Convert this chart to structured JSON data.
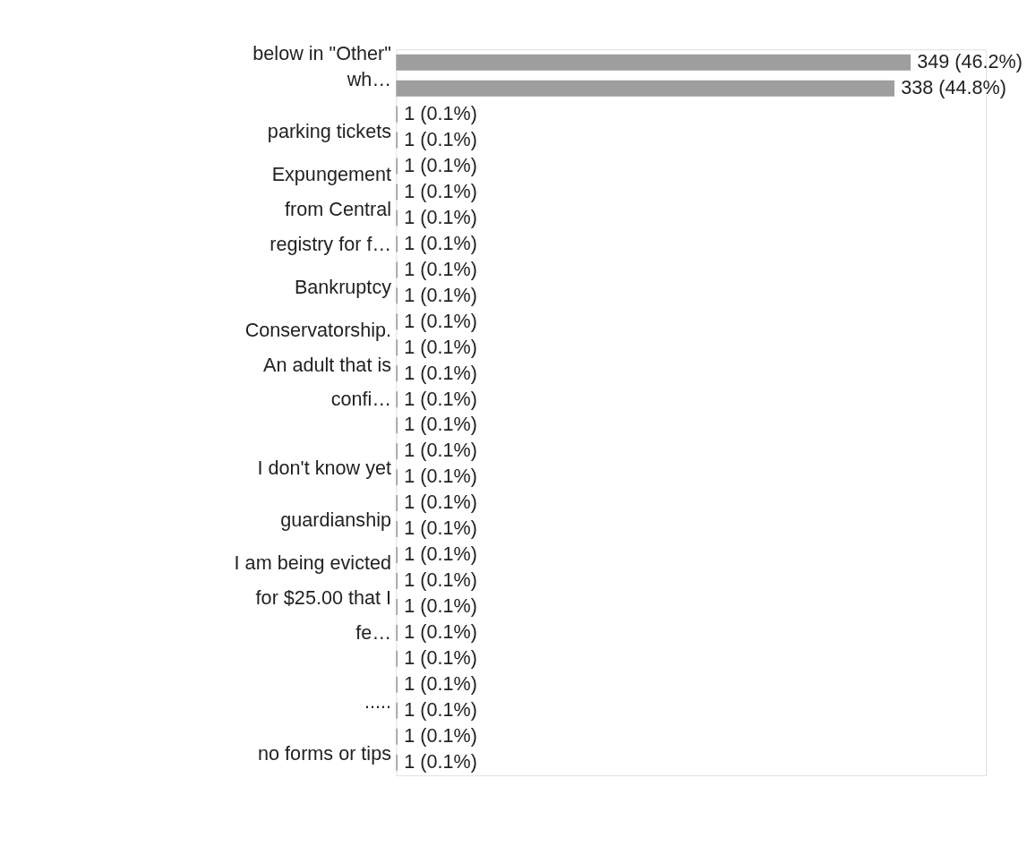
{
  "chart_data": {
    "type": "bar",
    "orientation": "horizontal",
    "categories": [
      "below in \"Other\"",
      "wh…",
      null,
      "parking tickets",
      null,
      null,
      "Expungement\nfrom Central\nregistry for f…",
      null,
      null,
      "Bankruptcy",
      null,
      null,
      "Conservatorship.\nAn adult that is\nconfi…",
      null,
      null,
      null,
      "I don't know yet",
      null,
      "guardianship",
      null,
      null,
      "I am being evicted\nfor $25.00 that I\nfe…",
      null,
      null,
      null,
      ".....",
      null,
      "no forms or tips"
    ],
    "values": [
      349,
      338,
      1,
      1,
      1,
      1,
      1,
      1,
      1,
      1,
      1,
      1,
      1,
      1,
      1,
      1,
      1,
      1,
      1,
      1,
      1,
      1,
      1,
      1,
      1,
      1,
      1,
      1
    ],
    "value_labels": [
      "349 (46.2%)",
      "338 (44.8%)",
      "1 (0.1%)",
      "1 (0.1%)",
      "1 (0.1%)",
      "1 (0.1%)",
      "1 (0.1%)",
      "1 (0.1%)",
      "1 (0.1%)",
      "1 (0.1%)",
      "1 (0.1%)",
      "1 (0.1%)",
      "1 (0.1%)",
      "1 (0.1%)",
      "1 (0.1%)",
      "1 (0.1%)",
      "1 (0.1%)",
      "1 (0.1%)",
      "1 (0.1%)",
      "1 (0.1%)",
      "1 (0.1%)",
      "1 (0.1%)",
      "1 (0.1%)",
      "1 (0.1%)",
      "1 (0.1%)",
      "1 (0.1%)",
      "1 (0.1%)",
      "1 (0.1%)"
    ],
    "color": "#9e9e9e",
    "xlim": [
      0,
      400
    ],
    "tick_labels": "y"
  }
}
